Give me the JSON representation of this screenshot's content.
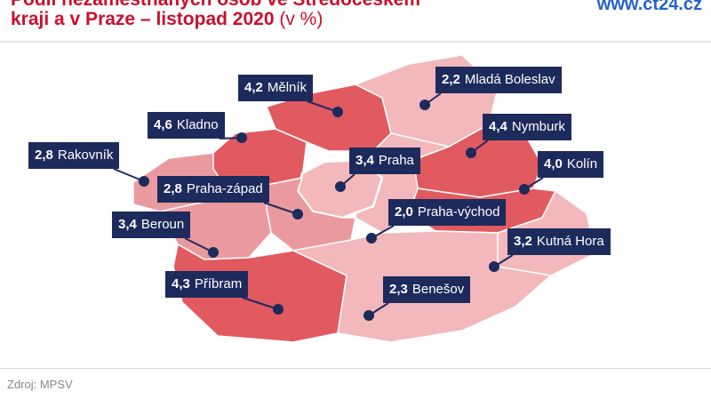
{
  "header": {
    "title_line1": "Podíl nezaměstnaných osob ve Středočeském",
    "title_line2": "kraji a v Praze – listopad 2020",
    "title_unit": "(v %)",
    "brand": "www.ct24.cz"
  },
  "footer": {
    "source": "Zdroj: MPSV"
  },
  "colors": {
    "high": "#e15a60",
    "mid": "#ea9a9f",
    "low": "#f2b8bb",
    "label_bg": "#1d2a5c",
    "title": "#c8102e",
    "brand": "#2563c9"
  },
  "districts": [
    {
      "name": "Mělník",
      "value": "4,2"
    },
    {
      "name": "Mladá Boleslav",
      "value": "2,2"
    },
    {
      "name": "Kladno",
      "value": "4,6"
    },
    {
      "name": "Nymburk",
      "value": "4,4"
    },
    {
      "name": "Rakovník",
      "value": "2,8"
    },
    {
      "name": "Praha",
      "value": "3,4"
    },
    {
      "name": "Kolín",
      "value": "4,0"
    },
    {
      "name": "Praha-západ",
      "value": "2,8"
    },
    {
      "name": "Praha-východ",
      "value": "2,0"
    },
    {
      "name": "Beroun",
      "value": "3,4"
    },
    {
      "name": "Kutná Hora",
      "value": "3,2"
    },
    {
      "name": "Příbram",
      "value": "4,3"
    },
    {
      "name": "Benešov",
      "value": "2,3"
    }
  ]
}
